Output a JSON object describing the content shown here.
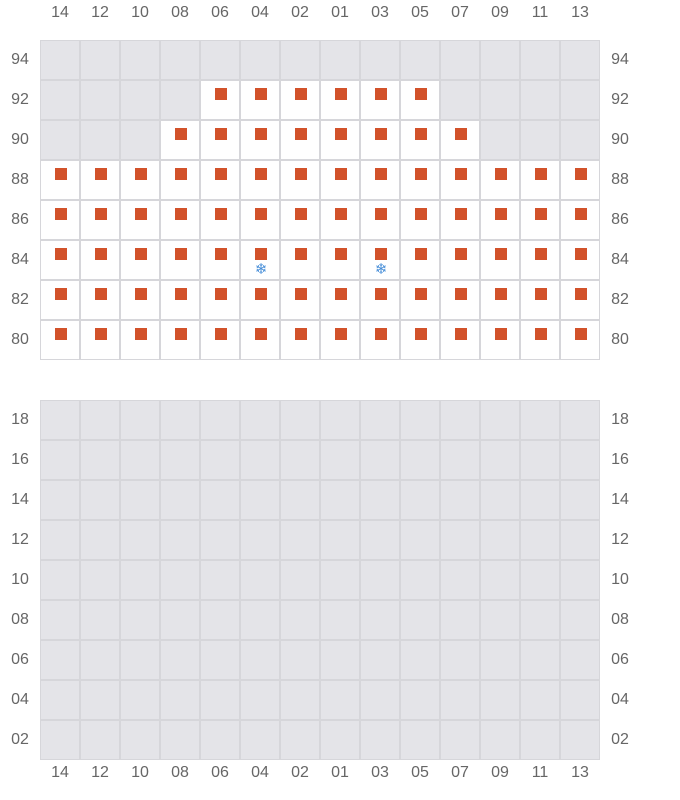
{
  "columns": [
    "14",
    "12",
    "10",
    "08",
    "06",
    "04",
    "02",
    "01",
    "03",
    "05",
    "07",
    "09",
    "11",
    "13"
  ],
  "colors": {
    "unavailable": "#e4e4e8",
    "available": "#ffffff",
    "marker": "#d2522a",
    "snowflake": "#4a90d9"
  },
  "icons": {
    "marker": "square-marker-icon",
    "snowflake": "snowflake-icon",
    "snowflake_glyph": "❄"
  },
  "top_section": {
    "rows": [
      {
        "label": "94",
        "available": []
      },
      {
        "label": "92",
        "available": [
          "06",
          "04",
          "02",
          "01",
          "03",
          "05"
        ]
      },
      {
        "label": "90",
        "available": [
          "08",
          "06",
          "04",
          "02",
          "01",
          "03",
          "05",
          "07"
        ]
      },
      {
        "label": "88",
        "available": "all"
      },
      {
        "label": "86",
        "available": "all"
      },
      {
        "label": "84",
        "available": "all",
        "snowflake": [
          "04",
          "03"
        ]
      },
      {
        "label": "82",
        "available": "all"
      },
      {
        "label": "80",
        "available": "all"
      }
    ]
  },
  "bottom_section": {
    "rows": [
      {
        "label": "18",
        "available": []
      },
      {
        "label": "16",
        "available": []
      },
      {
        "label": "14",
        "available": []
      },
      {
        "label": "12",
        "available": []
      },
      {
        "label": "10",
        "available": []
      },
      {
        "label": "08",
        "available": []
      },
      {
        "label": "06",
        "available": []
      },
      {
        "label": "04",
        "available": []
      },
      {
        "label": "02",
        "available": []
      }
    ]
  }
}
